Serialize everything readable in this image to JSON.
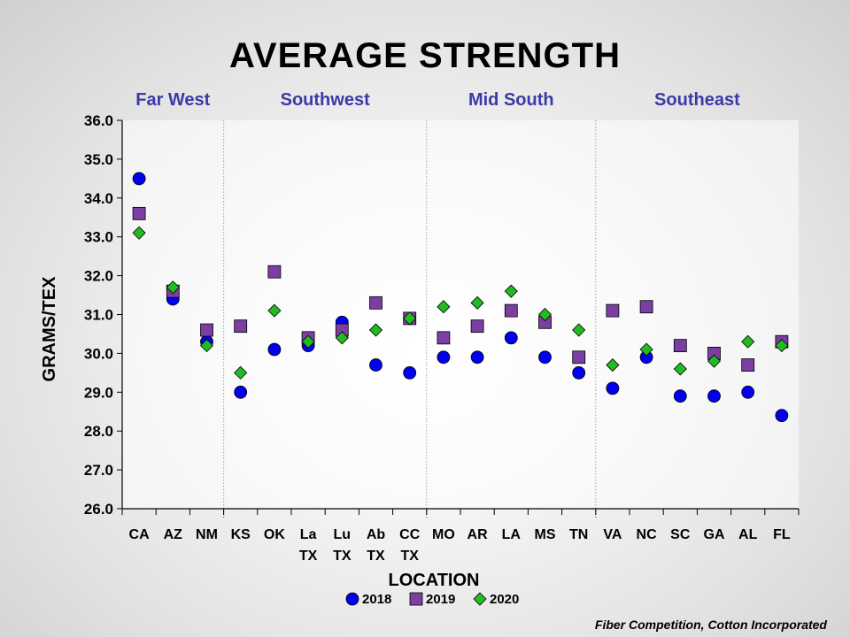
{
  "chart_data": {
    "type": "scatter",
    "title": "AVERAGE STRENGTH",
    "xlabel": "LOCATION",
    "ylabel": "GRAMS/TEX",
    "ylim": [
      26.0,
      36.0
    ],
    "yticks": [
      "26.0",
      "27.0",
      "28.0",
      "29.0",
      "30.0",
      "31.0",
      "32.0",
      "33.0",
      "34.0",
      "35.0",
      "36.0"
    ],
    "categories": [
      [
        "CA"
      ],
      [
        "AZ"
      ],
      [
        "NM"
      ],
      [
        "KS"
      ],
      [
        "OK"
      ],
      [
        "La",
        "TX"
      ],
      [
        "Lu",
        "TX"
      ],
      [
        "Ab",
        "TX"
      ],
      [
        "CC",
        "TX"
      ],
      [
        "MO"
      ],
      [
        "AR"
      ],
      [
        "LA"
      ],
      [
        "MS"
      ],
      [
        "TN"
      ],
      [
        "VA"
      ],
      [
        "NC"
      ],
      [
        "SC"
      ],
      [
        "GA"
      ],
      [
        "AL"
      ],
      [
        "FL"
      ]
    ],
    "regions": [
      {
        "name": "Far West",
        "start": 0,
        "end": 2
      },
      {
        "name": "Southwest",
        "start": 3,
        "end": 8
      },
      {
        "name": "Mid South",
        "start": 9,
        "end": 13
      },
      {
        "name": "Southeast",
        "start": 14,
        "end": 19
      }
    ],
    "series": [
      {
        "name": "2018",
        "marker": "circle",
        "color": "#0000ee",
        "values": [
          34.5,
          31.4,
          30.3,
          29.0,
          30.1,
          30.2,
          30.8,
          29.7,
          29.5,
          29.9,
          29.9,
          30.4,
          29.9,
          29.5,
          29.1,
          29.9,
          28.9,
          28.9,
          29.0,
          28.4
        ]
      },
      {
        "name": "2019",
        "marker": "square",
        "color": "#7a3fa0",
        "values": [
          33.6,
          31.6,
          30.6,
          30.7,
          32.1,
          30.4,
          30.6,
          31.3,
          30.9,
          30.4,
          30.7,
          31.1,
          30.8,
          29.9,
          31.1,
          31.2,
          30.2,
          30.0,
          29.7,
          30.3
        ]
      },
      {
        "name": "2020",
        "marker": "diamond",
        "color": "#22bb22",
        "values": [
          33.1,
          31.7,
          30.2,
          29.5,
          31.1,
          30.3,
          30.4,
          30.6,
          30.9,
          31.2,
          31.3,
          31.6,
          31.0,
          30.6,
          29.7,
          30.1,
          29.6,
          29.8,
          30.3,
          30.2
        ]
      }
    ],
    "legend_position": "bottom",
    "grid": false
  },
  "footer": {
    "credit": "Fiber Competition, Cotton Incorporated"
  }
}
